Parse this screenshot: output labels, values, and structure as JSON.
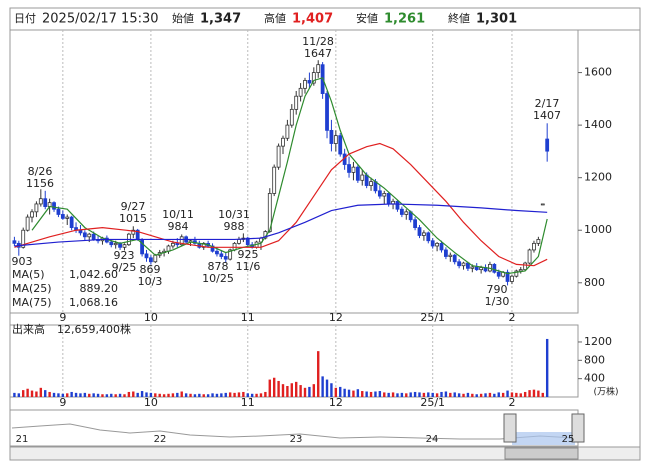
{
  "header": {
    "date_label": "日付",
    "date": "2025/02/17 15:30",
    "open_label": "始値",
    "open": "1,347",
    "high_label": "高値",
    "high": "1,407",
    "low_label": "安値",
    "low": "1,261",
    "close_label": "終値",
    "close": "1,301"
  },
  "chart_data": [
    {
      "type": "candlestick",
      "up_color": "#ffffff",
      "down_color": "#1f3fd0",
      "xlim": [
        -1,
        128
      ],
      "xticks": [
        {
          "value": 11,
          "label": "9"
        },
        {
          "value": 31,
          "label": "10"
        },
        {
          "value": 53,
          "label": "11"
        },
        {
          "value": 73,
          "label": "12"
        },
        {
          "value": 95,
          "label": "25/1"
        },
        {
          "value": 113,
          "label": "2"
        }
      ],
      "ylim": [
        685,
        1762
      ],
      "yticks": [
        800,
        1000,
        1200,
        1400,
        1600
      ],
      "candles": [
        [
          960,
          975,
          940,
          950
        ],
        [
          950,
          960,
          903,
          935
        ],
        [
          935,
          1010,
          930,
          1000
        ],
        [
          1000,
          1060,
          995,
          1050
        ],
        [
          1050,
          1080,
          1030,
          1070
        ],
        [
          1070,
          1110,
          1050,
          1100
        ],
        [
          1100,
          1156,
          1090,
          1120
        ],
        [
          1120,
          1150,
          1080,
          1090
        ],
        [
          1090,
          1120,
          1060,
          1105
        ],
        [
          1105,
          1110,
          1070,
          1080
        ],
        [
          1080,
          1090,
          1050,
          1060
        ],
        [
          1060,
          1075,
          1040,
          1045
        ],
        [
          1045,
          1060,
          1020,
          1050
        ],
        [
          1050,
          1055,
          1000,
          1010
        ],
        [
          1010,
          1030,
          990,
          1000
        ],
        [
          1000,
          1020,
          980,
          990
        ],
        [
          990,
          1000,
          960,
          975
        ],
        [
          975,
          990,
          955,
          985
        ],
        [
          985,
          995,
          960,
          965
        ],
        [
          965,
          980,
          950,
          960
        ],
        [
          960,
          975,
          945,
          970
        ],
        [
          970,
          980,
          950,
          955
        ],
        [
          955,
          965,
          935,
          945
        ],
        [
          945,
          960,
          930,
          950
        ],
        [
          950,
          955,
          925,
          935
        ],
        [
          935,
          950,
          923,
          945
        ],
        [
          945,
          990,
          940,
          985
        ],
        [
          985,
          1015,
          970,
          1000
        ],
        [
          1000,
          1005,
          960,
          965
        ],
        [
          965,
          970,
          900,
          910
        ],
        [
          910,
          925,
          880,
          895
        ],
        [
          895,
          905,
          869,
          880
        ],
        [
          880,
          910,
          875,
          905
        ],
        [
          905,
          925,
          895,
          915
        ],
        [
          915,
          930,
          900,
          920
        ],
        [
          920,
          945,
          910,
          940
        ],
        [
          940,
          960,
          930,
          950
        ],
        [
          950,
          970,
          935,
          945
        ],
        [
          945,
          984,
          940,
          975
        ],
        [
          975,
          980,
          950,
          955
        ],
        [
          955,
          965,
          940,
          960
        ],
        [
          960,
          975,
          945,
          950
        ],
        [
          950,
          960,
          930,
          935
        ],
        [
          935,
          955,
          925,
          950
        ],
        [
          950,
          960,
          935,
          940
        ],
        [
          940,
          950,
          915,
          920
        ],
        [
          920,
          935,
          900,
          910
        ],
        [
          910,
          925,
          890,
          900
        ],
        [
          900,
          915,
          878,
          890
        ],
        [
          890,
          930,
          885,
          925
        ],
        [
          925,
          955,
          920,
          950
        ],
        [
          950,
          975,
          945,
          965
        ],
        [
          965,
          988,
          955,
          970
        ],
        [
          970,
          975,
          940,
          945
        ],
        [
          945,
          955,
          930,
          935
        ],
        [
          935,
          960,
          930,
          955
        ],
        [
          955,
          975,
          925,
          970
        ],
        [
          970,
          1000,
          965,
          995
        ],
        [
          995,
          1160,
          990,
          1140
        ],
        [
          1140,
          1250,
          1130,
          1240
        ],
        [
          1240,
          1330,
          1230,
          1320
        ],
        [
          1320,
          1360,
          1290,
          1350
        ],
        [
          1350,
          1420,
          1340,
          1400
        ],
        [
          1400,
          1480,
          1390,
          1460
        ],
        [
          1460,
          1530,
          1440,
          1510
        ],
        [
          1510,
          1560,
          1490,
          1540
        ],
        [
          1540,
          1580,
          1520,
          1570
        ],
        [
          1570,
          1600,
          1540,
          1560
        ],
        [
          1560,
          1620,
          1550,
          1600
        ],
        [
          1600,
          1647,
          1580,
          1630
        ],
        [
          1630,
          1640,
          1500,
          1520
        ],
        [
          1520,
          1530,
          1350,
          1380
        ],
        [
          1380,
          1420,
          1300,
          1330
        ],
        [
          1330,
          1380,
          1300,
          1360
        ],
        [
          1360,
          1370,
          1280,
          1290
        ],
        [
          1290,
          1310,
          1230,
          1250
        ],
        [
          1250,
          1280,
          1200,
          1220
        ],
        [
          1220,
          1260,
          1190,
          1240
        ],
        [
          1240,
          1250,
          1180,
          1190
        ],
        [
          1190,
          1230,
          1170,
          1210
        ],
        [
          1210,
          1220,
          1160,
          1170
        ],
        [
          1170,
          1200,
          1150,
          1185
        ],
        [
          1185,
          1195,
          1140,
          1150
        ],
        [
          1150,
          1170,
          1120,
          1130
        ],
        [
          1130,
          1150,
          1100,
          1140
        ],
        [
          1140,
          1145,
          1090,
          1100
        ],
        [
          1100,
          1120,
          1080,
          1110
        ],
        [
          1110,
          1115,
          1070,
          1080
        ],
        [
          1080,
          1090,
          1050,
          1060
        ],
        [
          1060,
          1080,
          1040,
          1070
        ],
        [
          1070,
          1075,
          1030,
          1040
        ],
        [
          1040,
          1050,
          1000,
          1010
        ],
        [
          1010,
          1020,
          970,
          980
        ],
        [
          980,
          1000,
          960,
          990
        ],
        [
          990,
          995,
          950,
          960
        ],
        [
          960,
          970,
          930,
          940
        ],
        [
          940,
          955,
          920,
          950
        ],
        [
          950,
          960,
          915,
          925
        ],
        [
          925,
          935,
          890,
          900
        ],
        [
          900,
          915,
          880,
          905
        ],
        [
          905,
          910,
          870,
          880
        ],
        [
          880,
          890,
          855,
          865
        ],
        [
          865,
          880,
          850,
          875
        ],
        [
          875,
          880,
          845,
          855
        ],
        [
          855,
          870,
          840,
          860
        ],
        [
          860,
          875,
          845,
          850
        ],
        [
          850,
          865,
          835,
          858
        ],
        [
          858,
          870,
          840,
          845
        ],
        [
          845,
          880,
          840,
          870
        ],
        [
          870,
          875,
          835,
          840
        ],
        [
          840,
          850,
          815,
          825
        ],
        [
          825,
          845,
          820,
          840
        ],
        [
          840,
          850,
          790,
          805
        ],
        [
          805,
          830,
          795,
          825
        ],
        [
          825,
          850,
          820,
          845
        ],
        [
          845,
          860,
          835,
          850
        ],
        [
          850,
          880,
          845,
          875
        ],
        [
          875,
          930,
          870,
          925
        ],
        [
          925,
          960,
          915,
          950
        ],
        [
          950,
          975,
          940,
          965
        ],
        [
          1100,
          1100,
          1100,
          1100
        ],
        [
          1347,
          1407,
          1261,
          1301
        ]
      ],
      "series": [
        {
          "name": "MA(5)",
          "color": "#2e8b2e",
          "legend_value": "1,042.60",
          "x": [
            4,
            8,
            12,
            16,
            20,
            24,
            28,
            32,
            36,
            40,
            44,
            48,
            52,
            56,
            58,
            60,
            62,
            64,
            66,
            68,
            70,
            72,
            74,
            76,
            80,
            84,
            88,
            92,
            96,
            100,
            104,
            108,
            112,
            116,
            119,
            121
          ],
          "values": [
            1000,
            1090,
            1080,
            1010,
            970,
            950,
            965,
            905,
            925,
            955,
            945,
            915,
            935,
            950,
            1000,
            1130,
            1260,
            1400,
            1510,
            1570,
            1580,
            1490,
            1380,
            1290,
            1210,
            1160,
            1100,
            1040,
            970,
            915,
            865,
            855,
            835,
            845,
            900,
            1042.6
          ]
        },
        {
          "name": "MA(25)",
          "color": "#e02020",
          "legend_value": "889.20",
          "x": [
            0,
            8,
            14,
            20,
            28,
            32,
            36,
            40,
            44,
            48,
            52,
            56,
            60,
            64,
            68,
            72,
            76,
            80,
            83,
            86,
            90,
            94,
            98,
            102,
            106,
            110,
            114,
            118,
            121
          ],
          "values": [
            935,
            975,
            1000,
            1010,
            995,
            975,
            955,
            945,
            935,
            935,
            935,
            935,
            960,
            1030,
            1130,
            1230,
            1290,
            1318,
            1330,
            1310,
            1250,
            1180,
            1110,
            1030,
            960,
            900,
            870,
            865,
            889.2
          ]
        },
        {
          "name": "MA(75)",
          "color": "#2020d0",
          "legend_value": "1,068.16",
          "x": [
            0,
            10,
            20,
            30,
            40,
            50,
            56,
            60,
            66,
            72,
            78,
            86,
            96,
            106,
            114,
            121
          ],
          "values": [
            940,
            955,
            965,
            965,
            965,
            965,
            970,
            990,
            1030,
            1075,
            1095,
            1100,
            1095,
            1085,
            1075,
            1068.16
          ]
        }
      ],
      "annotations": [
        {
          "date": "8/26",
          "price": 1156
        },
        {
          "date": "9/27",
          "price": 1015
        },
        {
          "date": "10/11",
          "price": 984
        },
        {
          "date": "10/31",
          "price": 988
        },
        {
          "date": "11/28",
          "price": 1647
        },
        {
          "date": "2/17",
          "price": 1407
        },
        {
          "price": 903
        },
        {
          "price": 923,
          "date": "9/25"
        },
        {
          "price": 869,
          "date": "10/3"
        },
        {
          "price": 878,
          "date": "10/25"
        },
        {
          "price": 925,
          "date": "11/6"
        },
        {
          "price": 790,
          "date": "1/30"
        }
      ]
    },
    {
      "type": "bar",
      "title": "出来高",
      "total_label": "12,659,400株",
      "unit": "(万株)",
      "up_color": "#e02020",
      "down_color": "#1f3fd0",
      "xlim": [
        -1,
        128
      ],
      "ylim": [
        0,
        1570
      ],
      "yticks": [
        400,
        800,
        1200
      ],
      "values": [
        90,
        80,
        150,
        180,
        140,
        120,
        200,
        150,
        110,
        90,
        80,
        70,
        80,
        110,
        90,
        80,
        90,
        70,
        80,
        70,
        60,
        60,
        70,
        60,
        70,
        60,
        110,
        120,
        90,
        130,
        100,
        90,
        80,
        70,
        60,
        70,
        80,
        90,
        120,
        80,
        70,
        60,
        70,
        60,
        60,
        80,
        70,
        80,
        90,
        100,
        90,
        100,
        110,
        80,
        70,
        70,
        80,
        110,
        380,
        420,
        350,
        280,
        240,
        300,
        330,
        260,
        200,
        220,
        280,
        1000,
        450,
        380,
        300,
        200,
        220,
        180,
        160,
        140,
        170,
        130,
        120,
        110,
        120,
        130,
        100,
        90,
        100,
        80,
        90,
        80,
        100,
        110,
        100,
        90,
        100,
        90,
        80,
        110,
        120,
        90,
        100,
        80,
        70,
        90,
        70,
        60,
        70,
        80,
        90,
        70,
        100,
        90,
        140,
        100,
        90,
        80,
        110,
        150,
        160,
        140,
        90,
        1265.94
      ]
    }
  ],
  "navigator": {
    "labels": [
      "21",
      "22",
      "23",
      "24",
      "25"
    ]
  }
}
